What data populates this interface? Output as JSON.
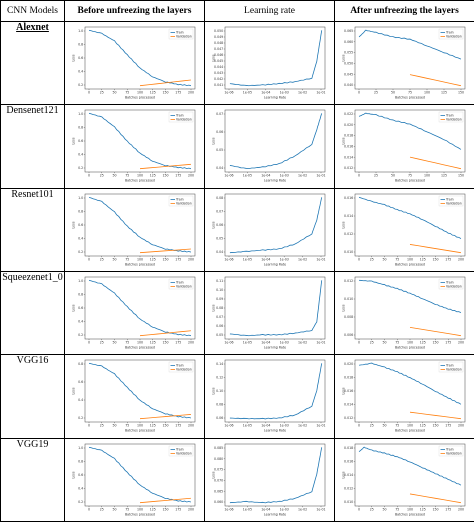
{
  "headers": [
    "CNN Models",
    "Before unfreezing the layers",
    "Learning rate",
    "After unfreezing the layers"
  ],
  "models": [
    "Alexnet",
    "Densenet121",
    "Resnet101",
    "Squeezenet1_0",
    "VGG16",
    "VGG19"
  ],
  "colors": {
    "train": "#1f77b4",
    "validation": "#ff7f0e"
  },
  "chart_data": [
    {
      "model": "Alexnet",
      "panel": "before",
      "type": "line",
      "xlabel": "Batches processed",
      "ylabel": "Loss",
      "x_ticks": [
        "0",
        "25",
        "50",
        "75",
        "100",
        "125",
        "150",
        "175",
        "200"
      ],
      "y_ticks": [
        "0.2",
        "0.4",
        "0.6",
        "0.8",
        "1.0"
      ],
      "legend": [
        "Train",
        "Validation"
      ],
      "legend_position": "top-right",
      "series": [
        {
          "name": "Train",
          "x": [
            0,
            25,
            50,
            75,
            100,
            125,
            150,
            175,
            200
          ],
          "y": [
            1.05,
            1.0,
            0.88,
            0.66,
            0.45,
            0.31,
            0.23,
            0.19,
            0.17
          ]
        },
        {
          "name": "Validation",
          "x": [
            100,
            200
          ],
          "y": [
            0.17,
            0.26
          ]
        }
      ]
    },
    {
      "model": "Alexnet",
      "panel": "lr",
      "type": "line",
      "xlabel": "Learning Rate",
      "ylabel": "Loss",
      "x_ticks": [
        "1e-06",
        "1e-05",
        "1e-04",
        "1e-03",
        "1e-02",
        "1e-01"
      ],
      "y_ticks": [
        "0.041",
        "0.042",
        "0.043",
        "0.044",
        "0.045",
        "0.046",
        "0.047",
        "0.048",
        "0.049",
        "0.050"
      ],
      "series": [
        {
          "name": "Loss",
          "x": [
            -6,
            -5,
            -4,
            -3,
            -2,
            -1,
            -0.7,
            -0.4
          ],
          "y": [
            0.0415,
            0.0412,
            0.0413,
            0.0415,
            0.0418,
            0.0423,
            0.0448,
            0.0493
          ]
        }
      ]
    },
    {
      "model": "Alexnet",
      "panel": "after",
      "type": "line",
      "xlabel": "Batches processed",
      "ylabel": "Loss",
      "x_ticks": [
        "0",
        "25",
        "50",
        "75",
        "100",
        "125",
        "150"
      ],
      "y_ticks": [
        "0.040",
        "0.045",
        "0.050",
        "0.055",
        "0.060",
        "0.065"
      ],
      "legend": [
        "Train",
        "Validation"
      ],
      "legend_position": "top-right",
      "series": [
        {
          "name": "Train",
          "x": [
            0,
            10,
            25,
            50,
            75,
            100,
            125,
            150
          ],
          "y": [
            0.061,
            0.064,
            0.063,
            0.061,
            0.06,
            0.057,
            0.054,
            0.051
          ]
        },
        {
          "name": "Validation",
          "x": [
            75,
            150
          ],
          "y": [
            0.044,
            0.039
          ]
        }
      ]
    },
    {
      "model": "Densenet121",
      "panel": "before",
      "type": "line",
      "xlabel": "Batches processed",
      "ylabel": "Loss",
      "x_ticks": [
        "0",
        "25",
        "50",
        "75",
        "100",
        "125",
        "150",
        "175",
        "200"
      ],
      "y_ticks": [
        "0.2",
        "0.4",
        "0.6",
        "0.8",
        "1.0"
      ],
      "legend": [
        "Train",
        "Validation"
      ],
      "legend_position": "top-right",
      "series": [
        {
          "name": "Train",
          "x": [
            0,
            25,
            50,
            75,
            100,
            125,
            150,
            175,
            200
          ],
          "y": [
            1.02,
            0.96,
            0.8,
            0.57,
            0.38,
            0.25,
            0.18,
            0.15,
            0.13
          ]
        },
        {
          "name": "Validation",
          "x": [
            100,
            200
          ],
          "y": [
            0.13,
            0.2
          ]
        }
      ]
    },
    {
      "model": "Densenet121",
      "panel": "lr",
      "type": "line",
      "xlabel": "Learning Rate",
      "ylabel": "Loss",
      "x_ticks": [
        "1e-06",
        "1e-05",
        "1e-04",
        "1e-03",
        "1e-02",
        "1e-01"
      ],
      "y_ticks": [
        "0.04",
        "0.05",
        "0.06",
        "0.07"
      ],
      "series": [
        {
          "name": "Loss",
          "x": [
            -6,
            -5,
            -4,
            -3,
            -2,
            -1,
            -0.7,
            -0.4
          ],
          "y": [
            0.041,
            0.039,
            0.04,
            0.042,
            0.047,
            0.054,
            0.063,
            0.073
          ]
        }
      ]
    },
    {
      "model": "Densenet121",
      "panel": "after",
      "type": "line",
      "xlabel": "Batches processed",
      "ylabel": "Loss",
      "x_ticks": [
        "0",
        "25",
        "50",
        "75",
        "100",
        "125",
        "150"
      ],
      "y_ticks": [
        "0.012",
        "0.014",
        "0.016",
        "0.018",
        "0.020",
        "0.022"
      ],
      "legend": [
        "Train",
        "Validation"
      ],
      "legend_position": "top-right",
      "series": [
        {
          "name": "Train",
          "x": [
            0,
            10,
            25,
            50,
            75,
            100,
            125,
            150
          ],
          "y": [
            0.0208,
            0.0212,
            0.021,
            0.0203,
            0.0198,
            0.0188,
            0.0178,
            0.0165
          ]
        },
        {
          "name": "Validation",
          "x": [
            75,
            150
          ],
          "y": [
            0.0155,
            0.014
          ]
        }
      ]
    },
    {
      "model": "Resnet101",
      "panel": "before",
      "type": "line",
      "xlabel": "Batches processed",
      "ylabel": "Loss",
      "x_ticks": [
        "0",
        "25",
        "50",
        "75",
        "100",
        "125",
        "150",
        "175",
        "200"
      ],
      "y_ticks": [
        "0.2",
        "0.4",
        "0.6",
        "0.8",
        "1.0"
      ],
      "legend": [
        "Train",
        "Validation"
      ],
      "legend_position": "top-right",
      "series": [
        {
          "name": "Train",
          "x": [
            0,
            25,
            50,
            75,
            100,
            125,
            150,
            175,
            200
          ],
          "y": [
            1.0,
            0.93,
            0.76,
            0.53,
            0.35,
            0.23,
            0.16,
            0.13,
            0.11
          ]
        },
        {
          "name": "Validation",
          "x": [
            100,
            200
          ],
          "y": [
            0.1,
            0.16
          ]
        }
      ]
    },
    {
      "model": "Resnet101",
      "panel": "lr",
      "type": "line",
      "xlabel": "Learning Rate",
      "ylabel": "Loss",
      "x_ticks": [
        "1e-06",
        "1e-05",
        "1e-04",
        "1e-03",
        "1e-02",
        "1e-01"
      ],
      "y_ticks": [
        "0.04",
        "0.05",
        "0.06",
        "0.07",
        "0.08"
      ],
      "series": [
        {
          "name": "Loss",
          "x": [
            -6,
            -5,
            -4,
            -3,
            -2,
            -1,
            -0.7,
            -0.4
          ],
          "y": [
            0.04,
            0.041,
            0.042,
            0.043,
            0.047,
            0.055,
            0.066,
            0.084
          ]
        }
      ]
    },
    {
      "model": "Resnet101",
      "panel": "after",
      "type": "line",
      "xlabel": "Batches processed",
      "ylabel": "Loss",
      "x_ticks": [
        "0",
        "25",
        "50",
        "75",
        "100",
        "125",
        "150",
        "175",
        "200"
      ],
      "y_ticks": [
        "0.010",
        "0.012",
        "0.014",
        "0.016"
      ],
      "legend": [
        "Train",
        "Validation"
      ],
      "legend_position": "top-right",
      "series": [
        {
          "name": "Train",
          "x": [
            0,
            25,
            50,
            75,
            100,
            125,
            150,
            175,
            200
          ],
          "y": [
            0.0165,
            0.016,
            0.0156,
            0.015,
            0.0145,
            0.0138,
            0.013,
            0.0122,
            0.0115
          ]
        },
        {
          "name": "Validation",
          "x": [
            100,
            200
          ],
          "y": [
            0.0108,
            0.0098
          ]
        }
      ]
    },
    {
      "model": "Squeezenet1_0",
      "panel": "before",
      "type": "line",
      "xlabel": "Batches processed",
      "ylabel": "Loss",
      "x_ticks": [
        "0",
        "25",
        "50",
        "75",
        "100",
        "125",
        "150",
        "175",
        "200"
      ],
      "y_ticks": [
        "0.2",
        "0.4",
        "0.6",
        "0.8",
        "1.0"
      ],
      "legend": [
        "Train",
        "Validation"
      ],
      "legend_position": "top-right",
      "series": [
        {
          "name": "Train",
          "x": [
            0,
            25,
            50,
            75,
            100,
            125,
            150,
            175,
            200
          ],
          "y": [
            1.03,
            0.97,
            0.82,
            0.6,
            0.4,
            0.27,
            0.19,
            0.15,
            0.13
          ]
        },
        {
          "name": "Validation",
          "x": [
            100,
            200
          ],
          "y": [
            0.13,
            0.21
          ]
        }
      ]
    },
    {
      "model": "Squeezenet1_0",
      "panel": "lr",
      "type": "line",
      "xlabel": "Learning Rate",
      "ylabel": "Loss",
      "x_ticks": [
        "1e-06",
        "1e-05",
        "1e-04",
        "1e-03",
        "1e-02",
        "1e-01"
      ],
      "y_ticks": [
        "0.05",
        "0.06",
        "0.07",
        "0.08",
        "0.09",
        "0.10",
        "0.11"
      ],
      "series": [
        {
          "name": "Loss",
          "x": [
            -6,
            -5,
            -4,
            -3,
            -2,
            -1,
            -0.7,
            -0.4
          ],
          "y": [
            0.051,
            0.049,
            0.05,
            0.05,
            0.052,
            0.055,
            0.065,
            0.112
          ]
        }
      ]
    },
    {
      "model": "Squeezenet1_0",
      "panel": "after",
      "type": "line",
      "xlabel": "Batches processed",
      "ylabel": "Loss",
      "x_ticks": [
        "0",
        "25",
        "50",
        "75",
        "100",
        "125",
        "150",
        "175",
        "200"
      ],
      "y_ticks": [
        "0.006",
        "0.008",
        "0.010",
        "0.012"
      ],
      "legend": [
        "Train",
        "Validation"
      ],
      "legend_position": "top-right",
      "series": [
        {
          "name": "Train",
          "x": [
            0,
            25,
            50,
            75,
            100,
            125,
            150,
            175,
            200
          ],
          "y": [
            0.0123,
            0.0122,
            0.0118,
            0.0114,
            0.0109,
            0.0103,
            0.0097,
            0.0092,
            0.0088
          ]
        },
        {
          "name": "Validation",
          "x": [
            100,
            200
          ],
          "y": [
            0.0072,
            0.0063
          ]
        }
      ]
    },
    {
      "model": "VGG16",
      "panel": "before",
      "type": "line",
      "xlabel": "Batches processed",
      "ylabel": "Loss",
      "x_ticks": [
        "0",
        "25",
        "50",
        "75",
        "100",
        "125",
        "150",
        "175",
        "200"
      ],
      "y_ticks": [
        "0.2",
        "0.4",
        "0.6",
        "0.8"
      ],
      "legend": [
        "Train",
        "Validation"
      ],
      "legend_position": "top-right",
      "series": [
        {
          "name": "Train",
          "x": [
            0,
            25,
            50,
            75,
            100,
            125,
            150,
            175,
            200
          ],
          "y": [
            0.88,
            0.84,
            0.73,
            0.54,
            0.36,
            0.24,
            0.17,
            0.13,
            0.11
          ]
        },
        {
          "name": "Validation",
          "x": [
            100,
            200
          ],
          "y": [
            0.1,
            0.16
          ]
        }
      ]
    },
    {
      "model": "VGG16",
      "panel": "lr",
      "type": "line",
      "xlabel": "Learning Rate",
      "ylabel": "Loss",
      "x_ticks": [
        "1e-06",
        "1e-05",
        "1e-04",
        "1e-03",
        "1e-02",
        "1e-01"
      ],
      "y_ticks": [
        "0.06",
        "0.08",
        "0.10",
        "0.12",
        "0.14"
      ],
      "series": [
        {
          "name": "Loss",
          "x": [
            -6,
            -5,
            -4,
            -3,
            -2,
            -1,
            -0.7,
            -0.4
          ],
          "y": [
            0.061,
            0.06,
            0.06,
            0.061,
            0.066,
            0.08,
            0.105,
            0.148
          ]
        }
      ]
    },
    {
      "model": "VGG16",
      "panel": "after",
      "type": "line",
      "xlabel": "Batches processed",
      "ylabel": "Loss",
      "x_ticks": [
        "0",
        "25",
        "50",
        "75",
        "100",
        "125",
        "150",
        "175",
        "200"
      ],
      "y_ticks": [
        "0.012",
        "0.014",
        "0.016",
        "0.018",
        "0.020"
      ],
      "legend": [
        "Train",
        "Validation"
      ],
      "legend_position": "top-right",
      "series": [
        {
          "name": "Train",
          "x": [
            0,
            25,
            50,
            75,
            100,
            125,
            150,
            175,
            200
          ],
          "y": [
            0.02,
            0.0203,
            0.0197,
            0.019,
            0.0181,
            0.0171,
            0.016,
            0.015,
            0.014
          ]
        },
        {
          "name": "Validation",
          "x": [
            100,
            200
          ],
          "y": [
            0.0128,
            0.0118
          ]
        }
      ]
    },
    {
      "model": "VGG19",
      "panel": "before",
      "type": "line",
      "xlabel": "Batches processed",
      "ylabel": "Loss",
      "x_ticks": [
        "0",
        "25",
        "50",
        "75",
        "100",
        "125",
        "150",
        "175",
        "200"
      ],
      "y_ticks": [
        "0.2",
        "0.4",
        "0.6",
        "0.8",
        "1.0"
      ],
      "legend": [
        "Train",
        "Validation"
      ],
      "legend_position": "top-right",
      "series": [
        {
          "name": "Train",
          "x": [
            0,
            25,
            50,
            75,
            100,
            125,
            150,
            175,
            200
          ],
          "y": [
            0.98,
            0.93,
            0.8,
            0.58,
            0.38,
            0.25,
            0.17,
            0.13,
            0.11
          ]
        },
        {
          "name": "Validation",
          "x": [
            100,
            200
          ],
          "y": [
            0.1,
            0.17
          ]
        }
      ]
    },
    {
      "model": "VGG19",
      "panel": "lr",
      "type": "line",
      "xlabel": "Learning Rate",
      "ylabel": "Loss",
      "x_ticks": [
        "1e-06",
        "1e-05",
        "1e-04",
        "1e-03",
        "1e-02",
        "1e-01"
      ],
      "y_ticks": [
        "0.060",
        "0.065",
        "0.070",
        "0.075",
        "0.080",
        "0.085"
      ],
      "series": [
        {
          "name": "Loss",
          "x": [
            -6,
            -5,
            -4,
            -3,
            -2,
            -1,
            -0.7,
            -0.4
          ],
          "y": [
            0.061,
            0.0615,
            0.061,
            0.0615,
            0.063,
            0.066,
            0.074,
            0.086
          ]
        }
      ]
    },
    {
      "model": "VGG19",
      "panel": "after",
      "type": "line",
      "xlabel": "Batches processed",
      "ylabel": "Loss",
      "x_ticks": [
        "0",
        "25",
        "50",
        "75",
        "100",
        "125",
        "150",
        "175",
        "200"
      ],
      "y_ticks": [
        "0.010",
        "0.012",
        "0.014",
        "0.016",
        "0.018"
      ],
      "legend": [
        "Train",
        "Validation"
      ],
      "legend_position": "top-right",
      "series": [
        {
          "name": "Train",
          "x": [
            0,
            10,
            25,
            50,
            75,
            100,
            125,
            150,
            175,
            200
          ],
          "y": [
            0.017,
            0.0176,
            0.0172,
            0.0168,
            0.0163,
            0.0156,
            0.0148,
            0.014,
            0.0132,
            0.0124
          ]
        },
        {
          "name": "Validation",
          "x": [
            100,
            200
          ],
          "y": [
            0.0112,
            0.01
          ]
        }
      ]
    }
  ]
}
